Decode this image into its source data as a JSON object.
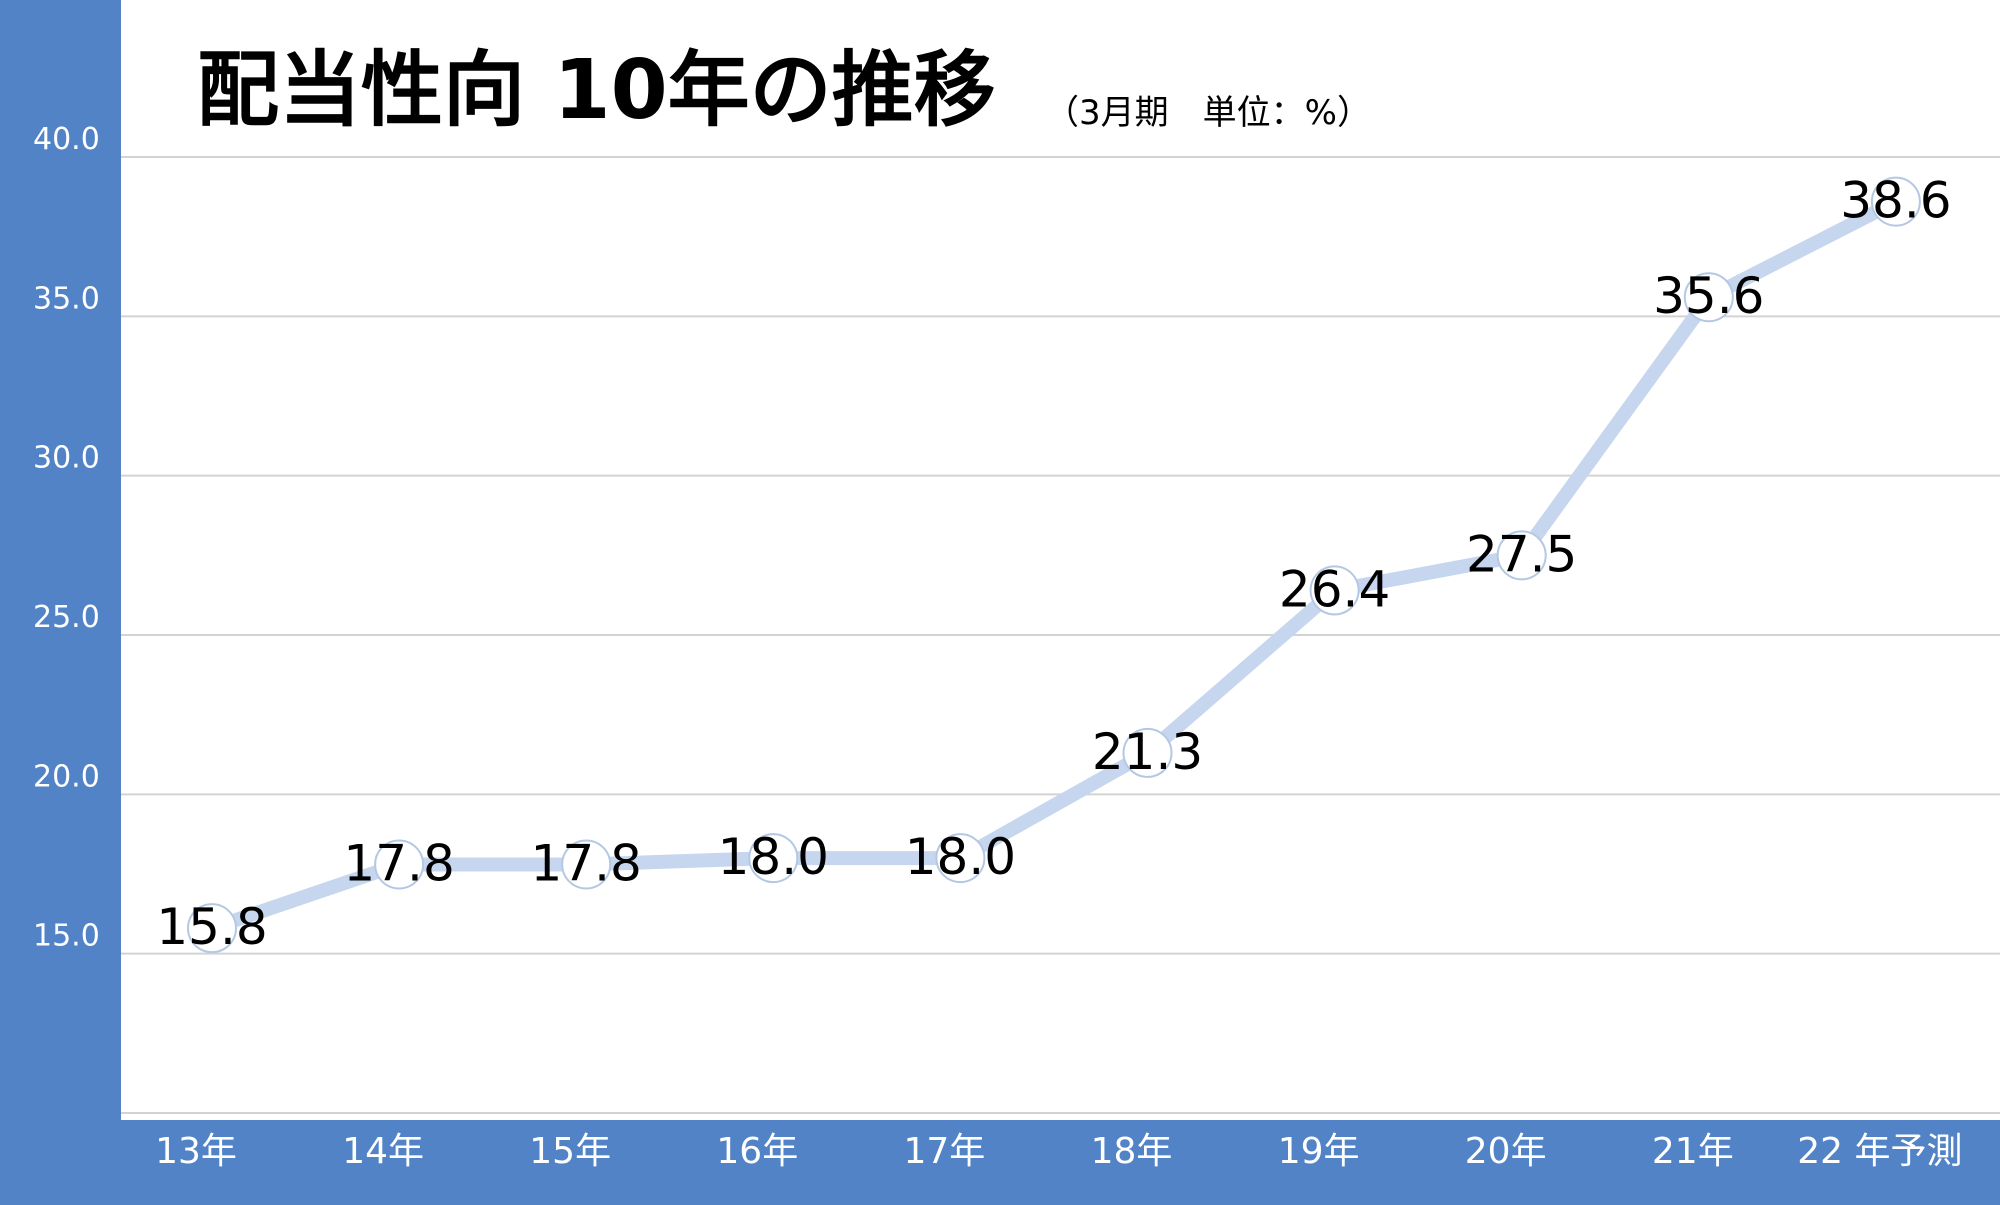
{
  "chart_data": {
    "type": "line",
    "title": "配当性向 10年の推移",
    "subtitle": "（3月期　単位：%）",
    "categories": [
      "13年",
      "14年",
      "15年",
      "16年",
      "17年",
      "18年",
      "19年",
      "20年",
      "21年",
      "22 年予測"
    ],
    "series": [
      {
        "values": [
          15.8,
          17.8,
          17.8,
          18.0,
          18.0,
          21.3,
          26.4,
          27.5,
          35.6,
          38.6
        ],
        "labels": [
          "15.8",
          "17.8",
          "17.8",
          "18.0",
          "18.0",
          "21.3",
          "26.4",
          "27.5",
          "35.6",
          "38.6"
        ]
      }
    ],
    "y_ticks": [
      "15.0",
      "20.0",
      "25.0",
      "30.0",
      "35.0",
      "40.0"
    ],
    "ylim": [
      10,
      40
    ],
    "grid": true,
    "colors": {
      "background": "#5283c6",
      "plot_background": "#ffffff",
      "line": "#c5d6ee",
      "point_edge": "#b4c8e4",
      "gridline": "#d3d3d3"
    }
  }
}
